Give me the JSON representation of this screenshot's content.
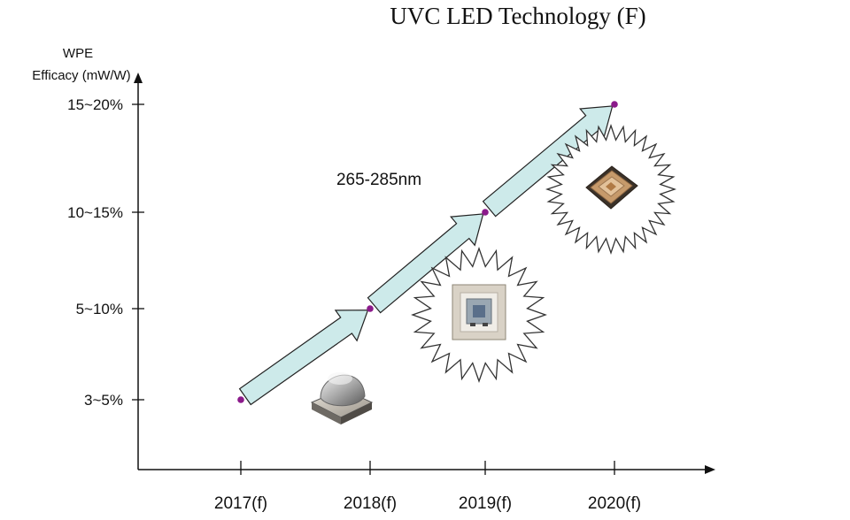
{
  "chart_data": {
    "type": "line",
    "title": "UVC LED Technology (F)",
    "ylabel_line1": "WPE",
    "ylabel_line2": "Efficacy (mW/W)",
    "xlabel": "",
    "categories": [
      "2017(f)",
      "2018(f)",
      "2019(f)",
      "2020(f)"
    ],
    "y_ticks": [
      "3~5%",
      "5~10%",
      "10~15%",
      "15~20%"
    ],
    "annotation": "265-285nm",
    "series": [
      {
        "values": [
          {
            "year": "2017(f)",
            "level": "3~5%"
          },
          {
            "year": "2018(f)",
            "level": "5~10%"
          },
          {
            "year": "2019(f)",
            "level": "10~15%"
          },
          {
            "year": "2020(f)",
            "level": "15~20%"
          }
        ]
      }
    ],
    "grid": false,
    "arrow_fill": "#cdeaea",
    "point_color": "#8b1a8b",
    "product_images": [
      "led-dome-package",
      "led-flat-package",
      "led-ceramic-package"
    ]
  }
}
